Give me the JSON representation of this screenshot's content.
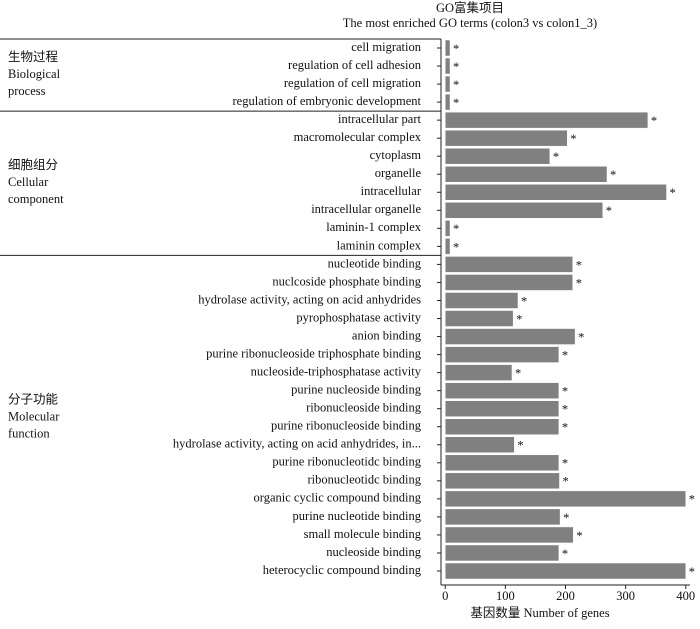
{
  "chart_data": {
    "type": "bar",
    "orientation": "horizontal",
    "title": "GO富集项目",
    "subtitle": "The most enriched GO terms (colon3 vs colon1_3)",
    "x_label": "基因数量  Number of genes",
    "color": "#808080",
    "xlim": [
      -7,
      407
    ],
    "xticks": [
      0,
      100,
      200,
      300,
      400
    ],
    "groups": [
      {
        "label": [
          "生物过程",
          "Biological",
          "process"
        ],
        "categories": [
          "cell migration",
          "regulation of cell adhesion",
          "regulation of cell migration",
          "regulation of embryonic development"
        ],
        "values": [
          8,
          8,
          8,
          8
        ],
        "significance": [
          "*",
          "*",
          "*",
          "*"
        ]
      },
      {
        "label": [
          "细胞组分",
          "Cellular",
          "component"
        ],
        "categories": [
          "intracellular part",
          "macromolecular complex",
          "cytoplasm",
          "organelle",
          "intracellular",
          "intracellular organelle",
          "laminin-1 complex",
          "laminin complex"
        ],
        "values": [
          337,
          203,
          174,
          269,
          368,
          262,
          8,
          8
        ],
        "significance": [
          "*",
          "*",
          "*",
          "*",
          "*",
          "*",
          "*",
          "*"
        ]
      },
      {
        "label": [
          "分子功能",
          "Molecular",
          "function"
        ],
        "categories": [
          "nucleotide binding",
          "nuclcoside phosphate binding",
          "hydrolase activity, acting on acid anhydrides",
          "pyrophosphatase activity",
          "anion binding",
          "purine ribonucleoside triphosphate binding",
          "nucleoside-triphosphatase activity",
          "purine nucleoside binding",
          "ribonucleoside binding",
          "purine ribonucleoside binding",
          "hydrolase activity, acting on acid anhydrides, in...",
          "purine ribonucleotidc binding",
          "ribonucleotidc binding",
          "organic cyclic compound binding",
          "purine nucleotide binding",
          "small molecule binding",
          "nucleoside binding",
          "heterocyclic compound binding"
        ],
        "values": [
          212,
          212,
          121,
          113,
          216,
          189,
          111,
          189,
          189,
          189,
          115,
          189,
          190,
          400,
          191,
          213,
          189,
          400
        ],
        "significance": [
          "*",
          "*",
          "*",
          "*",
          "*",
          "*",
          "*",
          "*",
          "*",
          "*",
          "*",
          "*",
          "*",
          "*",
          "*",
          "*",
          "*",
          "*"
        ]
      }
    ]
  }
}
